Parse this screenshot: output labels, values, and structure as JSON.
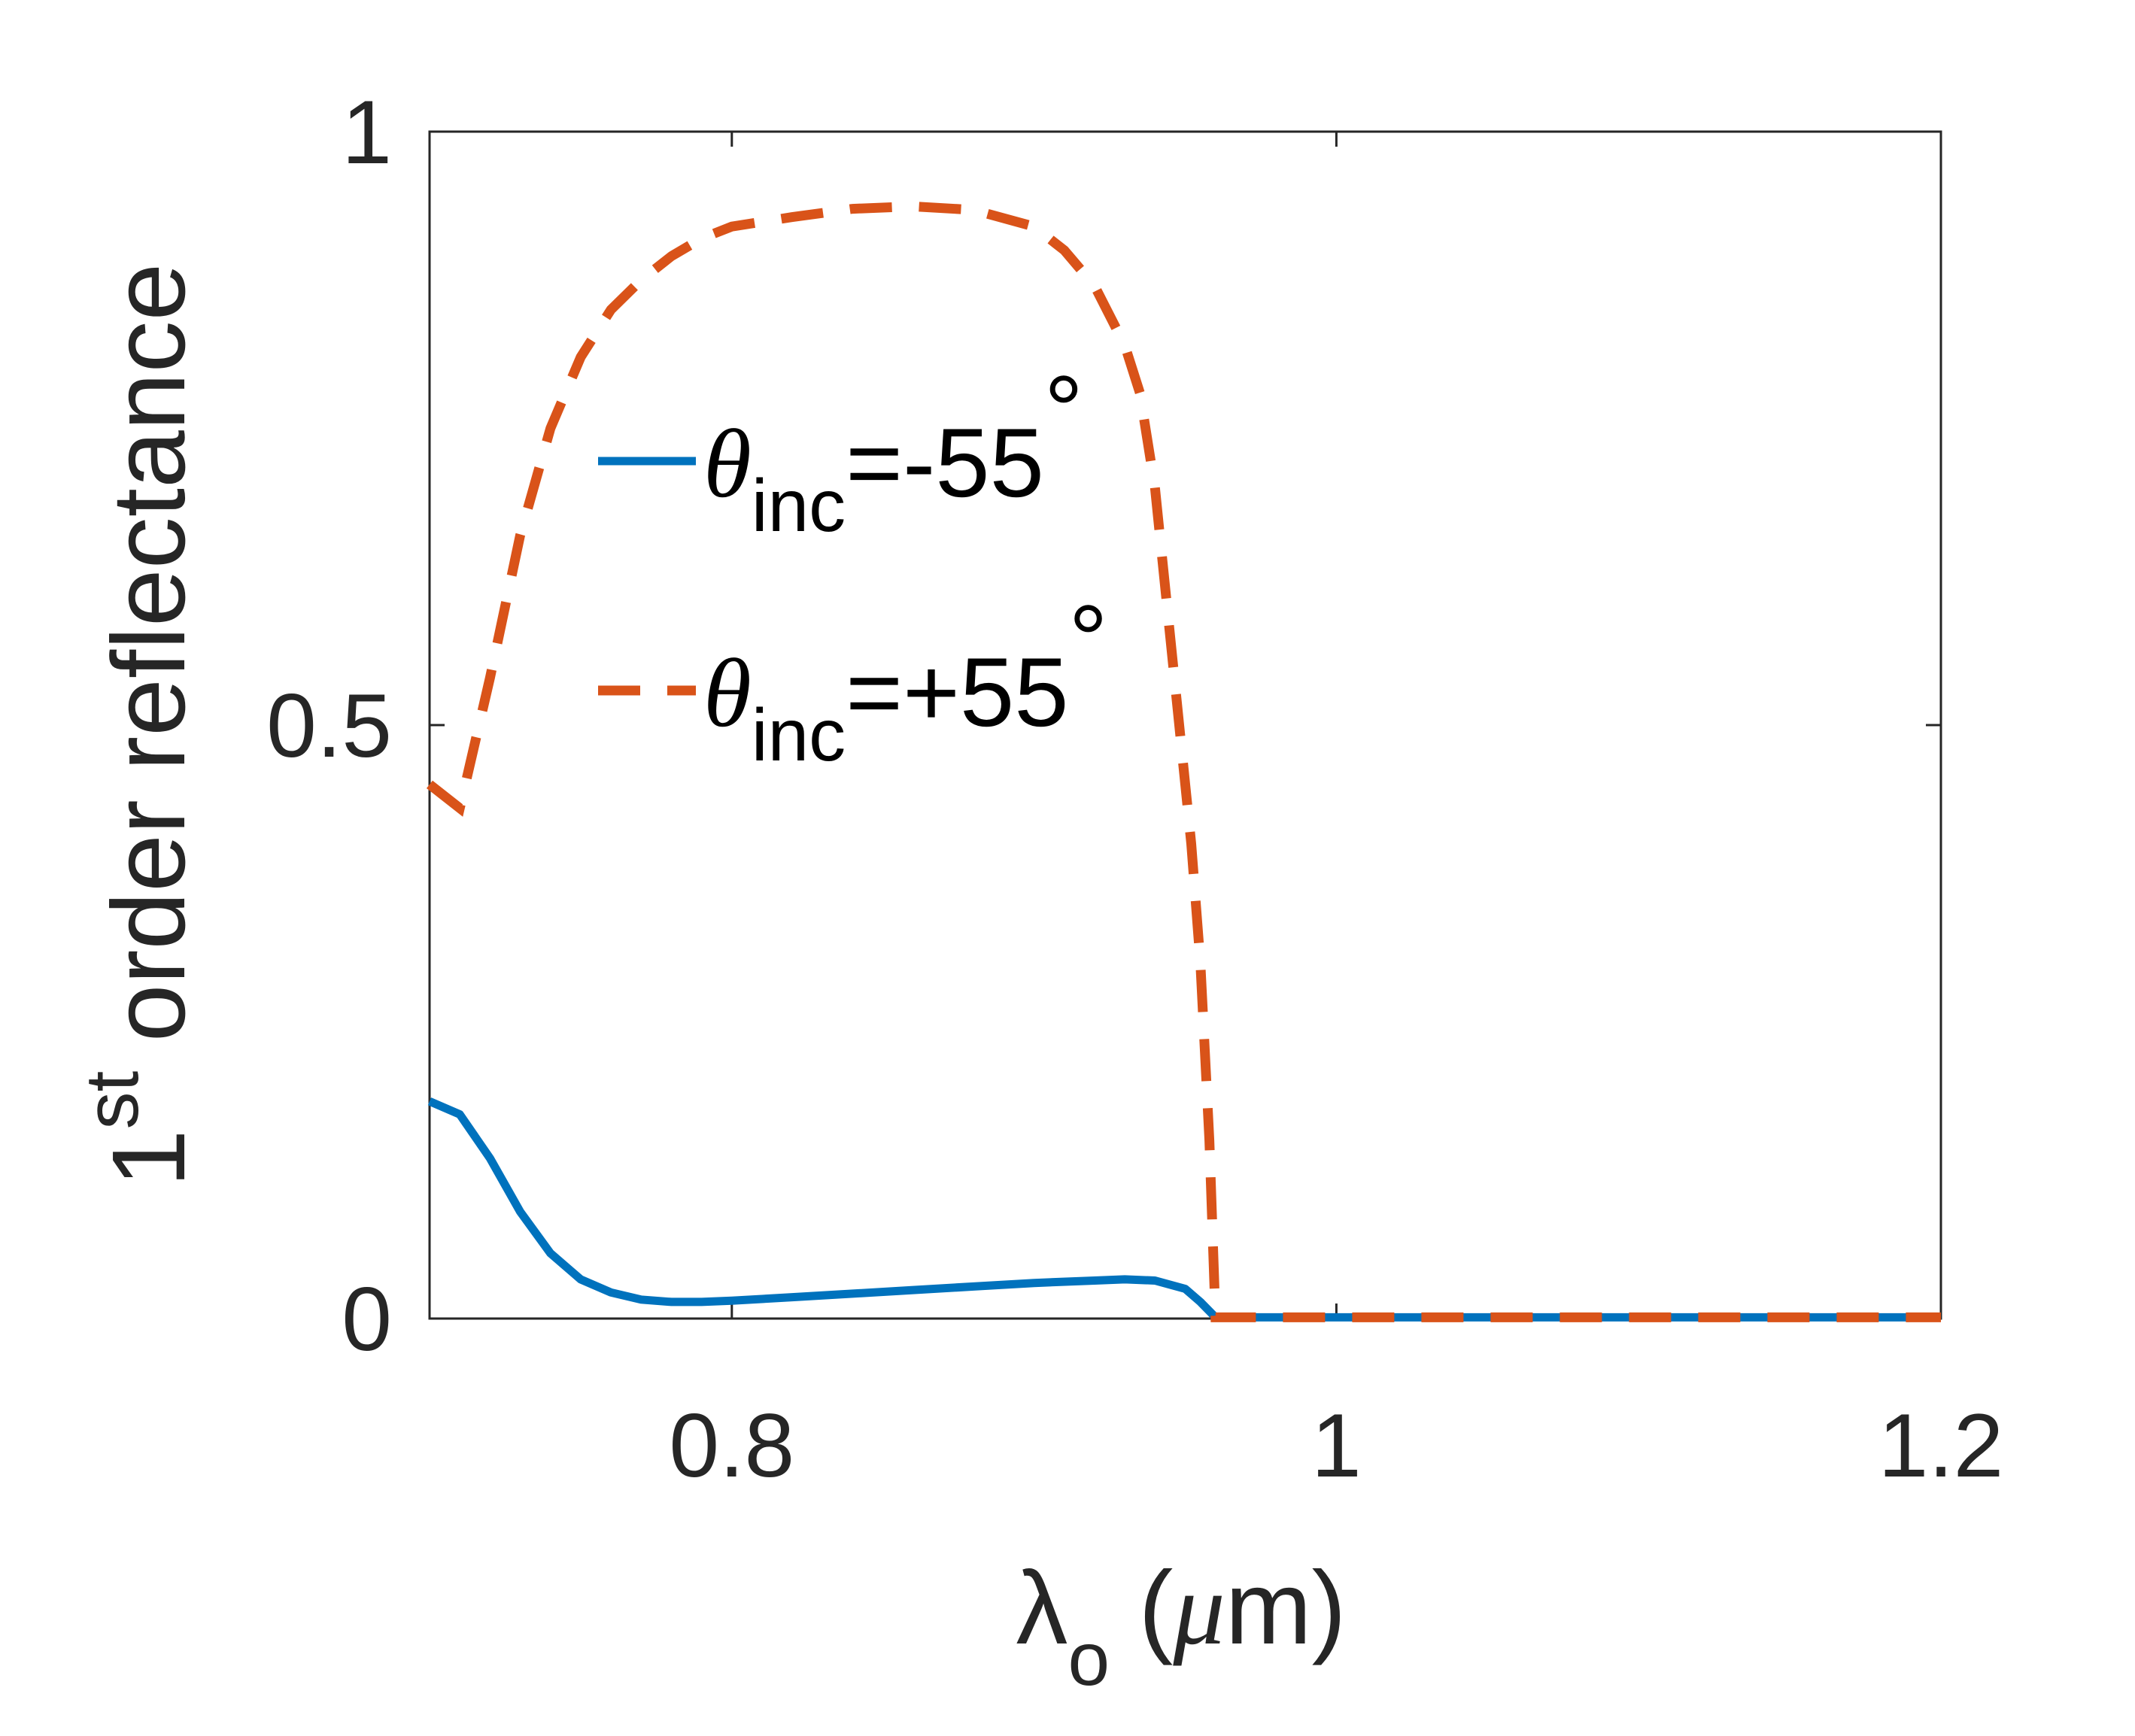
{
  "chart_data": {
    "type": "line",
    "xlabel": {
      "main": "λ",
      "sub": "o",
      "unit_open": " (",
      "mu": "μ",
      "unit_rest": "m)"
    },
    "ylabel": {
      "lead": "1",
      "sup": "st",
      "rest": " order reflectance"
    },
    "xlim": [
      0.7,
      1.2
    ],
    "ylim": [
      0,
      1
    ],
    "xticks": [
      0.8,
      1.0,
      1.2
    ],
    "xtick_labels": [
      "0.8",
      "1",
      "1.2"
    ],
    "yticks": [
      0,
      0.5,
      1
    ],
    "ytick_labels": [
      "0",
      "0.5",
      "1"
    ],
    "grid": false,
    "legend_position": "center-left",
    "series": [
      {
        "name": "θinc=-55°",
        "legend": {
          "sym": "θ",
          "sub": "inc",
          "rest": "=-55",
          "deg": "°"
        },
        "color": "#0072BD",
        "style": "solid",
        "x": [
          0.7,
          0.71,
          0.72,
          0.73,
          0.74,
          0.75,
          0.76,
          0.77,
          0.78,
          0.79,
          0.8,
          0.82,
          0.84,
          0.86,
          0.88,
          0.9,
          0.92,
          0.93,
          0.94,
          0.95,
          0.955,
          0.96,
          1.0,
          1.05,
          1.1,
          1.15,
          1.2
        ],
        "y": [
          0.183,
          0.172,
          0.135,
          0.09,
          0.055,
          0.033,
          0.022,
          0.016,
          0.014,
          0.014,
          0.015,
          0.018,
          0.021,
          0.024,
          0.027,
          0.03,
          0.032,
          0.033,
          0.032,
          0.025,
          0.014,
          0.001,
          0.001,
          0.001,
          0.001,
          0.001,
          0.001
        ]
      },
      {
        "name": "θinc=+55°",
        "legend": {
          "sym": "θ",
          "sub": "inc",
          "rest": "=+55",
          "deg": "°"
        },
        "color": "#D95319",
        "style": "dashed",
        "x": [
          0.7,
          0.71,
          0.72,
          0.73,
          0.74,
          0.75,
          0.76,
          0.77,
          0.78,
          0.79,
          0.8,
          0.82,
          0.84,
          0.86,
          0.88,
          0.9,
          0.91,
          0.92,
          0.93,
          0.935,
          0.94,
          0.944,
          0.948,
          0.952,
          0.955,
          0.958,
          0.96,
          1.0,
          1.05,
          1.1,
          1.15,
          1.2
        ],
        "y": [
          0.45,
          0.43,
          0.54,
          0.66,
          0.75,
          0.81,
          0.85,
          0.875,
          0.895,
          0.91,
          0.92,
          0.928,
          0.935,
          0.937,
          0.934,
          0.92,
          0.9,
          0.87,
          0.82,
          0.78,
          0.7,
          0.6,
          0.5,
          0.4,
          0.3,
          0.15,
          0.001,
          0.001,
          0.001,
          0.001,
          0.001,
          0.001
        ]
      }
    ]
  }
}
